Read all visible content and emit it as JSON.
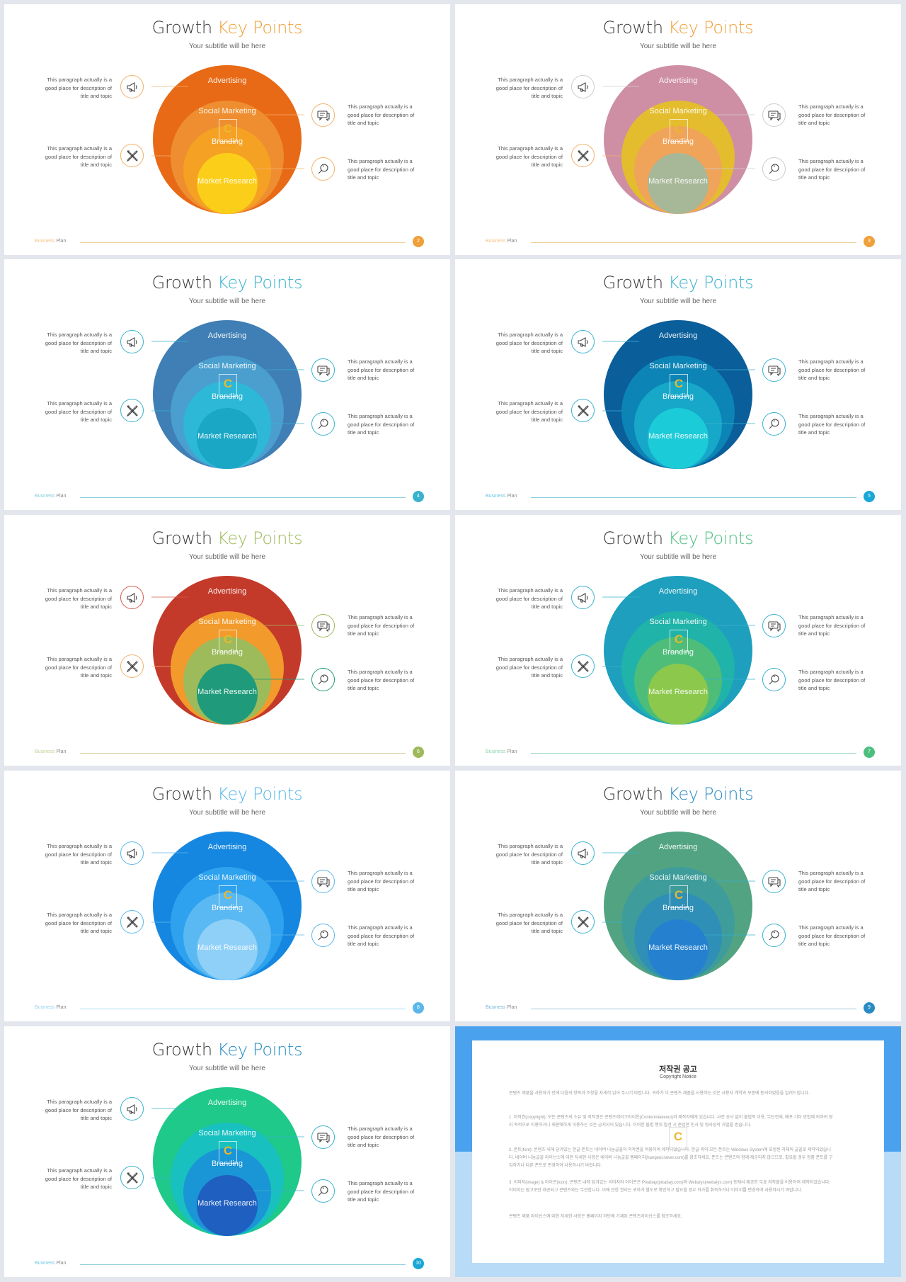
{
  "slides": [
    {
      "title_main": "Growth",
      "title_accent": "Key Points",
      "subtitle": "Your subtitle will be here",
      "accent": "#f0a03a",
      "paragraphs": {
        "tl": "This paragraph actually is a good place for description of title and topic",
        "bl": "This paragraph actually is a good place for description of title and topic",
        "tr": "This paragraph actually is a good place for description of title and topic",
        "br": "This paragraph actually is a good place for description of title and topic"
      },
      "circle_labels": {
        "c1": "Advertising",
        "c2": "Social Marketing",
        "c3": "Branding",
        "c4": "Market Research"
      },
      "colors": [
        "#e86a16",
        "#ee8e30",
        "#f5a123",
        "#fbcf19"
      ],
      "icon_colors": [
        "#f4b06b",
        "#f4b06b",
        "#f4b06b",
        "#f4b06b"
      ],
      "footer": {
        "word1": "Business",
        "word2": "Plan"
      },
      "page": "2",
      "line_color": "#f0d29a",
      "badge": "#f0a03a"
    },
    {
      "title_main": "Growth",
      "title_accent": "Key Points",
      "subtitle": "Your subtitle will be here",
      "accent": "#f0a03a",
      "paragraphs": {
        "tl": "This paragraph actually is a good place for description of title and topic",
        "bl": "This paragraph actually is a good place for description of title and topic",
        "tr": "This paragraph actually is a good place for description of title and topic",
        "br": "This paragraph actually is a good place for description of title and topic"
      },
      "circle_labels": {
        "c1": "Advertising",
        "c2": "Social Marketing",
        "c3": "Branding",
        "c4": "Market Research"
      },
      "colors": [
        "#ce8fa4",
        "#e3bd2d",
        "#f0a45a",
        "#a7b898"
      ],
      "icon_colors": [
        "#cccccc",
        "#f4b06b",
        "#cccccc",
        "#cccccc"
      ],
      "footer": {
        "word1": "Business",
        "word2": "Plan"
      },
      "page": "3",
      "line_color": "#f0d29a",
      "badge": "#f0a03a"
    },
    {
      "title_main": "Growth",
      "title_accent": "Key Points",
      "subtitle": "Your subtitle will be here",
      "accent": "#3ab2cd",
      "paragraphs": {
        "tl": "This paragraph actually is a good place for description of title and topic",
        "bl": "This paragraph actually is a good place for description of title and topic",
        "tr": "This paragraph actually is a good place for description of title and topic",
        "br": "This paragraph actually is a good place for description of title and topic"
      },
      "circle_labels": {
        "c1": "Advertising",
        "c2": "Social Marketing",
        "c3": "Branding",
        "c4": "Market Research"
      },
      "colors": [
        "#3f7fb5",
        "#4a9fcf",
        "#2eb8d8",
        "#1aa7c6"
      ],
      "icon_colors": [
        "#3ab2cd",
        "#3ab2cd",
        "#3ab2cd",
        "#3ab2cd"
      ],
      "footer": {
        "word1": "Business",
        "word2": "Plan"
      },
      "page": "4",
      "line_color": "#8ecfe0",
      "badge": "#3ab2cd"
    },
    {
      "title_main": "Growth",
      "title_accent": "Key Points",
      "subtitle": "Your subtitle will be here",
      "accent": "#3ab2cd",
      "paragraphs": {
        "tl": "This paragraph actually is a good place for description of title and topic",
        "bl": "This paragraph actually is a good place for description of title and topic",
        "tr": "This paragraph actually is a good place for description of title and topic",
        "br": "This paragraph actually is a good place for description of title and topic"
      },
      "circle_labels": {
        "c1": "Advertising",
        "c2": "Social Marketing",
        "c3": "Branding",
        "c4": "Market Research"
      },
      "colors": [
        "#0a5e9a",
        "#0c84b6",
        "#17a7c9",
        "#1ccbd8"
      ],
      "icon_colors": [
        "#3ab2cd",
        "#3ab2cd",
        "#3ab2cd",
        "#3ab2cd"
      ],
      "footer": {
        "word1": "Business",
        "word2": "Plan"
      },
      "page": "5",
      "line_color": "#8ecfe0",
      "badge": "#1aa7d6"
    },
    {
      "title_main": "Growth",
      "title_accent": "Key Points",
      "subtitle": "Your subtitle will be here",
      "accent": "#9dba5a",
      "paragraphs": {
        "tl": "This paragraph actually is a good place for description of title and topic",
        "bl": "This paragraph actually is a good place for description of title and topic",
        "tr": "This paragraph actually is a good place for description of title and topic",
        "br": "This paragraph actually is a good place for description of title and topic"
      },
      "circle_labels": {
        "c1": "Advertising",
        "c2": "Social Marketing",
        "c3": "Branding",
        "c4": "Market Research"
      },
      "colors": [
        "#c43a2a",
        "#f29a2b",
        "#9dbb5b",
        "#1f9a7a"
      ],
      "icon_colors": [
        "#d35b4c",
        "#f4b06b",
        "#9dba5a",
        "#1f9a7a"
      ],
      "footer": {
        "word1": "Business",
        "word2": "Plan"
      },
      "page": "6",
      "line_color": "#d8d0a0",
      "badge": "#9dba5a"
    },
    {
      "title_main": "Growth",
      "title_accent": "Key Points",
      "subtitle": "Your subtitle will be here",
      "accent": "#4cbf7f",
      "paragraphs": {
        "tl": "This paragraph actually is a good place for description of title and topic",
        "bl": "This paragraph actually is a good place for description of title and topic",
        "tr": "This paragraph actually is a good place for description of title and topic",
        "br": "This paragraph actually is a good place for description of title and topic"
      },
      "circle_labels": {
        "c1": "Advertising",
        "c2": "Social Marketing",
        "c3": "Branding",
        "c4": "Market Research"
      },
      "colors": [
        "#1d9fbd",
        "#20b3aa",
        "#4dbd79",
        "#8bc84c"
      ],
      "icon_colors": [
        "#3ab2cd",
        "#3ab2cd",
        "#3ab2cd",
        "#3ab2cd"
      ],
      "footer": {
        "word1": "Business",
        "word2": "Plan"
      },
      "page": "7",
      "line_color": "#9ed8c0",
      "badge": "#4cbf7f"
    },
    {
      "title_main": "Growth",
      "title_accent": "Key Points",
      "subtitle": "Your subtitle will be here",
      "accent": "#5bb7ea",
      "paragraphs": {
        "tl": "This paragraph actually is a good place for description of title and topic",
        "bl": "This paragraph actually is a good place for description of title and topic",
        "tr": "This paragraph actually is a good place for description of title and topic",
        "br": "This paragraph actually is a good place for description of title and topic"
      },
      "circle_labels": {
        "c1": "Advertising",
        "c2": "Social Marketing",
        "c3": "Branding",
        "c4": "Market Research"
      },
      "colors": [
        "#1687e0",
        "#2ea2ee",
        "#5ab9f2",
        "#8fd0f8"
      ],
      "icon_colors": [
        "#5bb7ea",
        "#5bb7ea",
        "#5bb7ea",
        "#5bb7ea"
      ],
      "footer": {
        "word1": "Business",
        "word2": "Plan"
      },
      "page": "8",
      "line_color": "#a8d8f0",
      "badge": "#5bb7ea"
    },
    {
      "title_main": "Growth",
      "title_accent": "Key Points",
      "subtitle": "Your subtitle will be here",
      "accent": "#2a8bc4",
      "paragraphs": {
        "tl": "This paragraph actually is a good place for description of title and topic",
        "bl": "This paragraph actually is a good place for description of title and topic",
        "tr": "This paragraph actually is a good place for description of title and topic",
        "br": "This paragraph actually is a good place for description of title and topic"
      },
      "circle_labels": {
        "c1": "Advertising",
        "c2": "Social Marketing",
        "c3": "Branding",
        "c4": "Market Research"
      },
      "colors": [
        "#52a382",
        "#3e9d9b",
        "#2f8fb6",
        "#2581cf"
      ],
      "icon_colors": [
        "#3ab2cd",
        "#3ab2cd",
        "#3ab2cd",
        "#3ab2cd"
      ],
      "footer": {
        "word1": "Business",
        "word2": "Plan"
      },
      "page": "9",
      "line_color": "#a0c8d8",
      "badge": "#2a8bc4"
    },
    {
      "title_main": "Growth",
      "title_accent": "Key Points",
      "subtitle": "Your subtitle will be here",
      "accent": "#2a8bc4",
      "paragraphs": {
        "tl": "This paragraph actually is a good place for description of title and topic",
        "bl": "This paragraph actually is a good place for description of title and topic",
        "tr": "This paragraph actually is a good place for description of title and topic",
        "br": "This paragraph actually is a good place for description of title and topic"
      },
      "circle_labels": {
        "c1": "Advertising",
        "c2": "Social Marketing",
        "c3": "Branding",
        "c4": "Market Research"
      },
      "colors": [
        "#1fc98a",
        "#18c0c0",
        "#1a95d6",
        "#1f5fc0"
      ],
      "icon_colors": [
        "#3ab2cd",
        "#3ab2cd",
        "#3ab2cd",
        "#3ab2cd"
      ],
      "footer": {
        "word1": "Business",
        "word2": "Plan"
      },
      "page": "10",
      "line_color": "#8ecfe0",
      "badge": "#1aa7d6"
    }
  ],
  "copyright": {
    "title": "저작권 공고",
    "subtitle": "Copyright Notice",
    "intro": "콘텐츠 제품을 사용하기 전에 다음의 항목과 조항을 자세히 읽어 주시기 바랍니다. 귀하가 이 콘텐츠 제품을 사용하는 것은 사용자 계약과 보증에 동의하였음을 알려드립니다.",
    "p1": "1. 저작권(copyright): 모든 콘텐츠의 소유 및 저작권은 콘텐츠레이크라이온(Contentslakeout)과 제작자에게 있습니다. 사전 승낙 없이 불법적 이용, 무단전재, 배포 기타 방법에 의하여 영리 목적으로 이용하거나 재판매하게 이용하는 것은 금지되어 있습니다. 이러한 불법 행위 발견 시 준엄한 민사 및 형사상의 처벌을 받습니다.",
    "p2": "2. 폰트(font): 콘텐츠 내에 담겨있는 한글 폰트는 네이버 나눔글꼴의 저작권을 적용하여 제작되었습니다. 한글 외의 모든 폰트는 Windows System에 포함된 자체의 글꼴로 제작되었습니다. 네이버 나눔글꼴 라이선스에 대한 자세한 사항은 네이버 나눔글꼴 홈페이지(hangeul.naver.com)를 참조하세요. 폰트는 콘텐츠와 함께 제공되지 않으므로, 필요할 경우 정품 폰트를 구입하거나 다른 폰트로 변경하여 사용하시기 바랍니다.",
    "p3": "3. 이미지(image) & 아이콘(icon): 콘텐츠 내에 담겨있는 이미지와 아이콘은 Pixabay(pixabay.com)와 Webalys(webalys.com) 등에서 제공한 무료 저작물을 이용하여 제작되었습니다. 이미지는 참고로만 제공되고 콘텐츠와는 무관합니다. 이에 관한 권리는 귀하가 별도로 확인하고 필요할 경우 허가를 취득하거나 이미지를 변경하여 사용하시기 바랍니다.",
    "outro": "콘텐츠 제품 라이선스에 대한 자세한 사항은 홈페이지 하단에 기재된 콘텐츠라이선스를 참조하세요.",
    "colors": {
      "top": "#4aa2ee",
      "bottom": "#b8dcf8"
    }
  },
  "watermark_letter": "C"
}
